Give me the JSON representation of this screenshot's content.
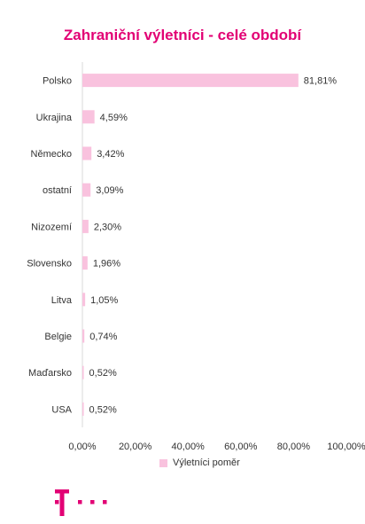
{
  "chart_data": {
    "type": "bar",
    "orientation": "horizontal",
    "title": "Zahraniční výletníci - celé období",
    "categories": [
      "Polsko",
      "Ukrajina",
      "Německo",
      "ostatní",
      "Nizozemí",
      "Slovensko",
      "Litva",
      "Belgie",
      "Maďarsko",
      "USA"
    ],
    "series": [
      {
        "name": "Výletníci poměr",
        "values": [
          81.81,
          4.59,
          3.42,
          3.09,
          2.3,
          1.96,
          1.05,
          0.74,
          0.52,
          0.52
        ],
        "labels": [
          "81,81%",
          "4,59%",
          "3,42%",
          "3,09%",
          "2,30%",
          "1,96%",
          "1,05%",
          "0,74%",
          "0,52%",
          "0,52%"
        ],
        "color": "#f9c2de"
      }
    ],
    "xlim": [
      0,
      100
    ],
    "xticks": [
      "0,00%",
      "20,00%",
      "40,00%",
      "60,00%",
      "80,00%",
      "100,00%"
    ],
    "legend_position": "bottom",
    "grid": false
  },
  "colors": {
    "title": "#e20074",
    "bar": "#f9c2de",
    "logo": "#e20074"
  },
  "logo": {
    "brand": "Telekom T logo"
  }
}
